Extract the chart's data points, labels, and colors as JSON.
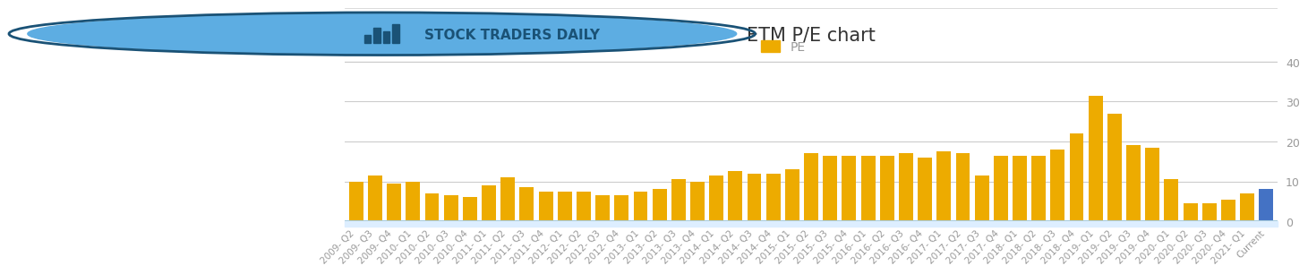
{
  "title": "ETM P/E chart",
  "legend_label": "PE",
  "bar_color": "#EDAB00",
  "current_bar_color": "#4472C4",
  "background_color": "#ffffff",
  "ylim": [
    0,
    40
  ],
  "yticks": [
    0,
    10,
    20,
    30,
    40
  ],
  "categories": [
    "2009- Q2",
    "2009- Q3",
    "2009- Q4",
    "2010- Q1",
    "2010- Q2",
    "2010- Q3",
    "2010- Q4",
    "2011- Q1",
    "2011- Q2",
    "2011- Q3",
    "2011- Q4",
    "2012- Q1",
    "2012- Q2",
    "2012- Q3",
    "2012- Q4",
    "2013- Q1",
    "2013- Q2",
    "2013- Q3",
    "2013- Q4",
    "2014- Q1",
    "2014- Q2",
    "2014- Q3",
    "2014- Q4",
    "2015- Q1",
    "2015- Q2",
    "2015- Q3",
    "2015- Q4",
    "2016- Q1",
    "2016- Q2",
    "2016- Q3",
    "2016- Q4",
    "2017- Q1",
    "2017- Q2",
    "2017- Q3",
    "2017- Q4",
    "2018- Q1",
    "2018- Q2",
    "2018- Q3",
    "2018- Q4",
    "2019- Q1",
    "2019- Q2",
    "2019- Q3",
    "2019- Q4",
    "2020- Q1",
    "2020- Q2",
    "2020- Q3",
    "2020- Q4",
    "2021- Q1",
    "Current"
  ],
  "values": [
    10.0,
    11.5,
    9.5,
    10.0,
    7.0,
    6.5,
    6.0,
    9.0,
    11.0,
    8.5,
    7.5,
    7.5,
    7.5,
    6.5,
    6.5,
    7.5,
    8.0,
    10.5,
    10.0,
    11.5,
    12.5,
    12.0,
    12.0,
    13.0,
    17.0,
    16.5,
    16.5,
    16.5,
    16.5,
    17.0,
    16.0,
    17.5,
    17.0,
    11.5,
    16.5,
    16.5,
    16.5,
    18.0,
    22.0,
    31.5,
    27.0,
    19.0,
    18.5,
    10.5,
    4.5,
    4.5,
    5.5,
    7.0,
    8.0
  ],
  "tick_fontsize": 7.5,
  "tick_color": "#999999",
  "grid_color": "#cccccc",
  "title_fontsize": 15,
  "title_color": "#333333",
  "legend_fontsize": 10,
  "header_line_color": "#cccccc",
  "ticker_band_color": "#ddeeff",
  "logo_text": "STOCK TRADERS DAILY",
  "logo_text_color": "#1a5276",
  "logo_fontsize": 11
}
